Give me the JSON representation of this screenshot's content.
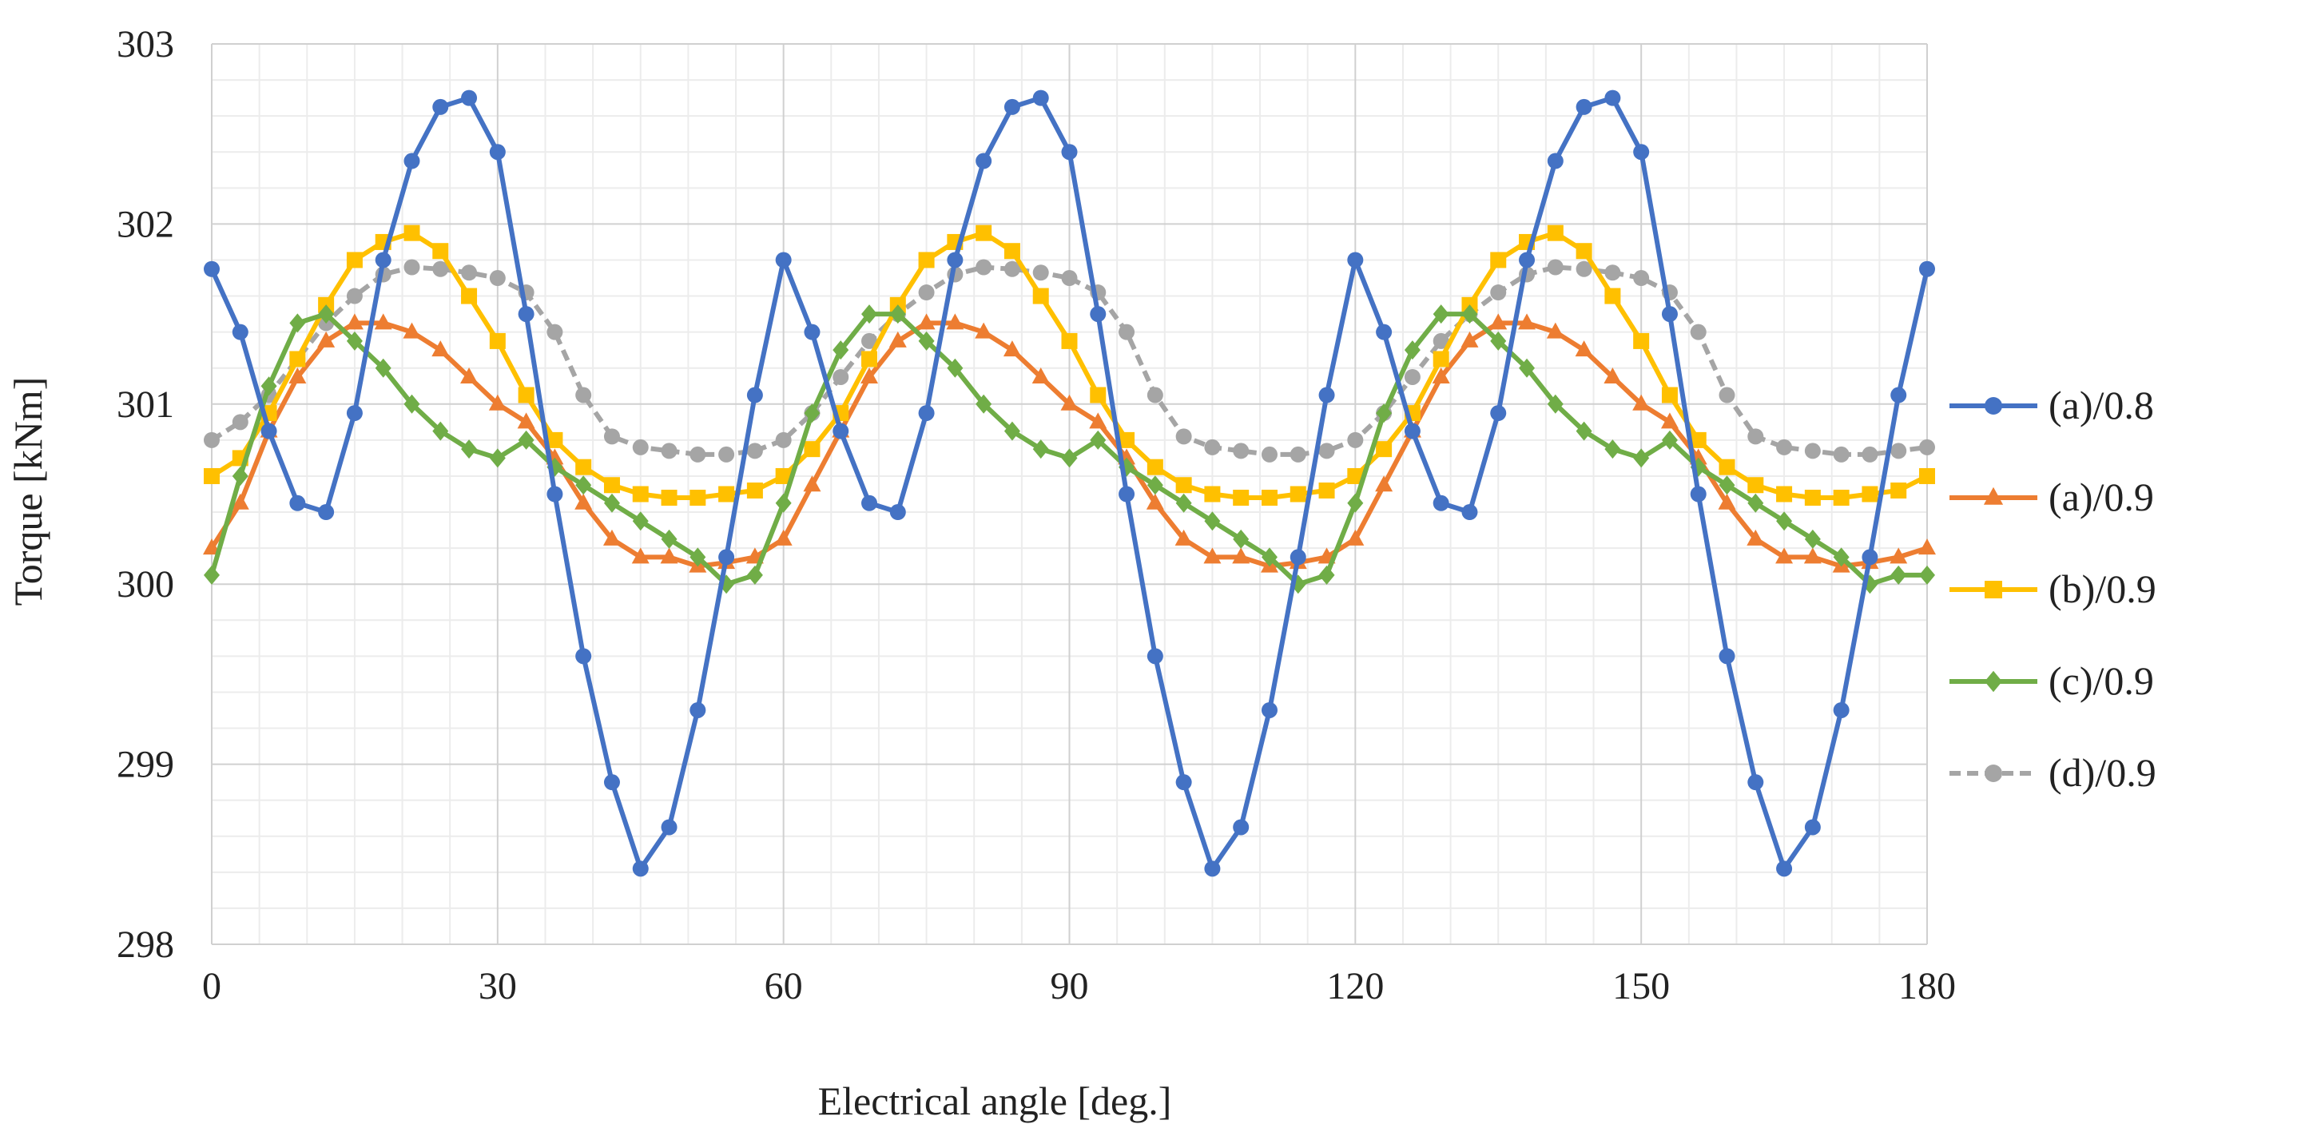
{
  "chart_data": {
    "type": "line",
    "title": "",
    "xlabel": "Electrical angle [deg.]",
    "ylabel": "Torque [kNm]",
    "xlim": [
      0,
      180
    ],
    "ylim": [
      298,
      303
    ],
    "x_ticks": [
      0,
      30,
      60,
      90,
      120,
      150,
      180
    ],
    "y_ticks": [
      298,
      299,
      300,
      301,
      302,
      303
    ],
    "x_tick_labels": [
      "0",
      "30",
      "60",
      "90",
      "120",
      "150",
      "180"
    ],
    "y_tick_labels": [
      "298",
      "299",
      "300",
      "301",
      "302",
      "303"
    ],
    "x_minor_step": 5,
    "y_minor_step": 0.2,
    "grid": true,
    "legend_position": "right",
    "x": [
      0,
      3,
      6,
      9,
      12,
      15,
      18,
      21,
      24,
      27,
      30,
      33,
      36,
      39,
      42,
      45,
      48,
      51,
      54,
      57,
      60,
      63,
      66,
      69,
      72,
      75,
      78,
      81,
      84,
      87,
      90,
      93,
      96,
      99,
      102,
      105,
      108,
      111,
      114,
      117,
      120,
      123,
      126,
      129,
      132,
      135,
      138,
      141,
      144,
      147,
      150,
      153,
      156,
      159,
      162,
      165,
      168,
      171,
      174,
      177,
      180
    ],
    "series": [
      {
        "name": "(a)/0.8",
        "color": "#4472C4",
        "marker": "circle",
        "dash": "solid",
        "values": [
          301.75,
          301.4,
          300.85,
          300.45,
          300.4,
          300.95,
          301.8,
          302.35,
          302.65,
          302.7,
          302.4,
          301.5,
          300.5,
          299.6,
          298.9,
          298.42,
          298.65,
          299.3,
          300.15,
          301.05,
          301.8,
          301.4,
          300.85,
          300.45,
          300.4,
          300.95,
          301.8,
          302.35,
          302.65,
          302.7,
          302.4,
          301.5,
          300.5,
          299.6,
          298.9,
          298.42,
          298.65,
          299.3,
          300.15,
          301.05,
          301.8,
          301.4,
          300.85,
          300.45,
          300.4,
          300.95,
          301.8,
          302.35,
          302.65,
          302.7,
          302.4,
          301.5,
          300.5,
          299.6,
          298.9,
          298.42,
          298.65,
          299.3,
          300.15,
          301.05,
          301.75
        ]
      },
      {
        "name": "(a)/0.9",
        "color": "#ED7D31",
        "marker": "triangle",
        "dash": "solid",
        "values": [
          300.2,
          300.45,
          300.85,
          301.15,
          301.35,
          301.45,
          301.45,
          301.4,
          301.3,
          301.15,
          301.0,
          300.9,
          300.7,
          300.45,
          300.25,
          300.15,
          300.15,
          300.1,
          300.12,
          300.15,
          300.25,
          300.55,
          300.85,
          301.15,
          301.35,
          301.45,
          301.45,
          301.4,
          301.3,
          301.15,
          301.0,
          300.9,
          300.7,
          300.45,
          300.25,
          300.15,
          300.15,
          300.1,
          300.12,
          300.15,
          300.25,
          300.55,
          300.85,
          301.15,
          301.35,
          301.45,
          301.45,
          301.4,
          301.3,
          301.15,
          301.0,
          300.9,
          300.7,
          300.45,
          300.25,
          300.15,
          300.15,
          300.1,
          300.12,
          300.15,
          300.2
        ]
      },
      {
        "name": "(b)/0.9",
        "color": "#FFC000",
        "marker": "square",
        "dash": "solid",
        "values": [
          300.6,
          300.7,
          300.95,
          301.25,
          301.55,
          301.8,
          301.9,
          301.95,
          301.85,
          301.6,
          301.35,
          301.05,
          300.8,
          300.65,
          300.55,
          300.5,
          300.48,
          300.48,
          300.5,
          300.52,
          300.6,
          300.75,
          300.95,
          301.25,
          301.55,
          301.8,
          301.9,
          301.95,
          301.85,
          301.6,
          301.35,
          301.05,
          300.8,
          300.65,
          300.55,
          300.5,
          300.48,
          300.48,
          300.5,
          300.52,
          300.6,
          300.75,
          300.95,
          301.25,
          301.55,
          301.8,
          301.9,
          301.95,
          301.85,
          301.6,
          301.35,
          301.05,
          300.8,
          300.65,
          300.55,
          300.5,
          300.48,
          300.48,
          300.5,
          300.52,
          300.6
        ]
      },
      {
        "name": "(c)/0.9",
        "color": "#70AD47",
        "marker": "diamond",
        "dash": "solid",
        "values": [
          300.05,
          300.6,
          301.1,
          301.45,
          301.5,
          301.35,
          301.2,
          301.0,
          300.85,
          300.75,
          300.7,
          300.8,
          300.65,
          300.55,
          300.45,
          300.35,
          300.25,
          300.15,
          300.0,
          300.05,
          300.45,
          300.95,
          301.3,
          301.5,
          301.5,
          301.35,
          301.2,
          301.0,
          300.85,
          300.75,
          300.7,
          300.8,
          300.65,
          300.55,
          300.45,
          300.35,
          300.25,
          300.15,
          300.0,
          300.05,
          300.45,
          300.95,
          301.3,
          301.5,
          301.5,
          301.35,
          301.2,
          301.0,
          300.85,
          300.75,
          300.7,
          300.8,
          300.65,
          300.55,
          300.45,
          300.35,
          300.25,
          300.15,
          300.0,
          300.05,
          300.05
        ]
      },
      {
        "name": "(d)/0.9",
        "color": "#A5A5A5",
        "marker": "circle",
        "dash": "dashed",
        "values": [
          300.8,
          300.9,
          301.05,
          301.25,
          301.45,
          301.6,
          301.72,
          301.76,
          301.75,
          301.73,
          301.7,
          301.62,
          301.4,
          301.05,
          300.82,
          300.76,
          300.74,
          300.72,
          300.72,
          300.74,
          300.8,
          300.95,
          301.15,
          301.35,
          301.5,
          301.62,
          301.72,
          301.76,
          301.75,
          301.73,
          301.7,
          301.62,
          301.4,
          301.05,
          300.82,
          300.76,
          300.74,
          300.72,
          300.72,
          300.74,
          300.8,
          300.95,
          301.15,
          301.35,
          301.5,
          301.62,
          301.72,
          301.76,
          301.75,
          301.73,
          301.7,
          301.62,
          301.4,
          301.05,
          300.82,
          300.76,
          300.74,
          300.72,
          300.72,
          300.74,
          300.76
        ]
      }
    ]
  }
}
